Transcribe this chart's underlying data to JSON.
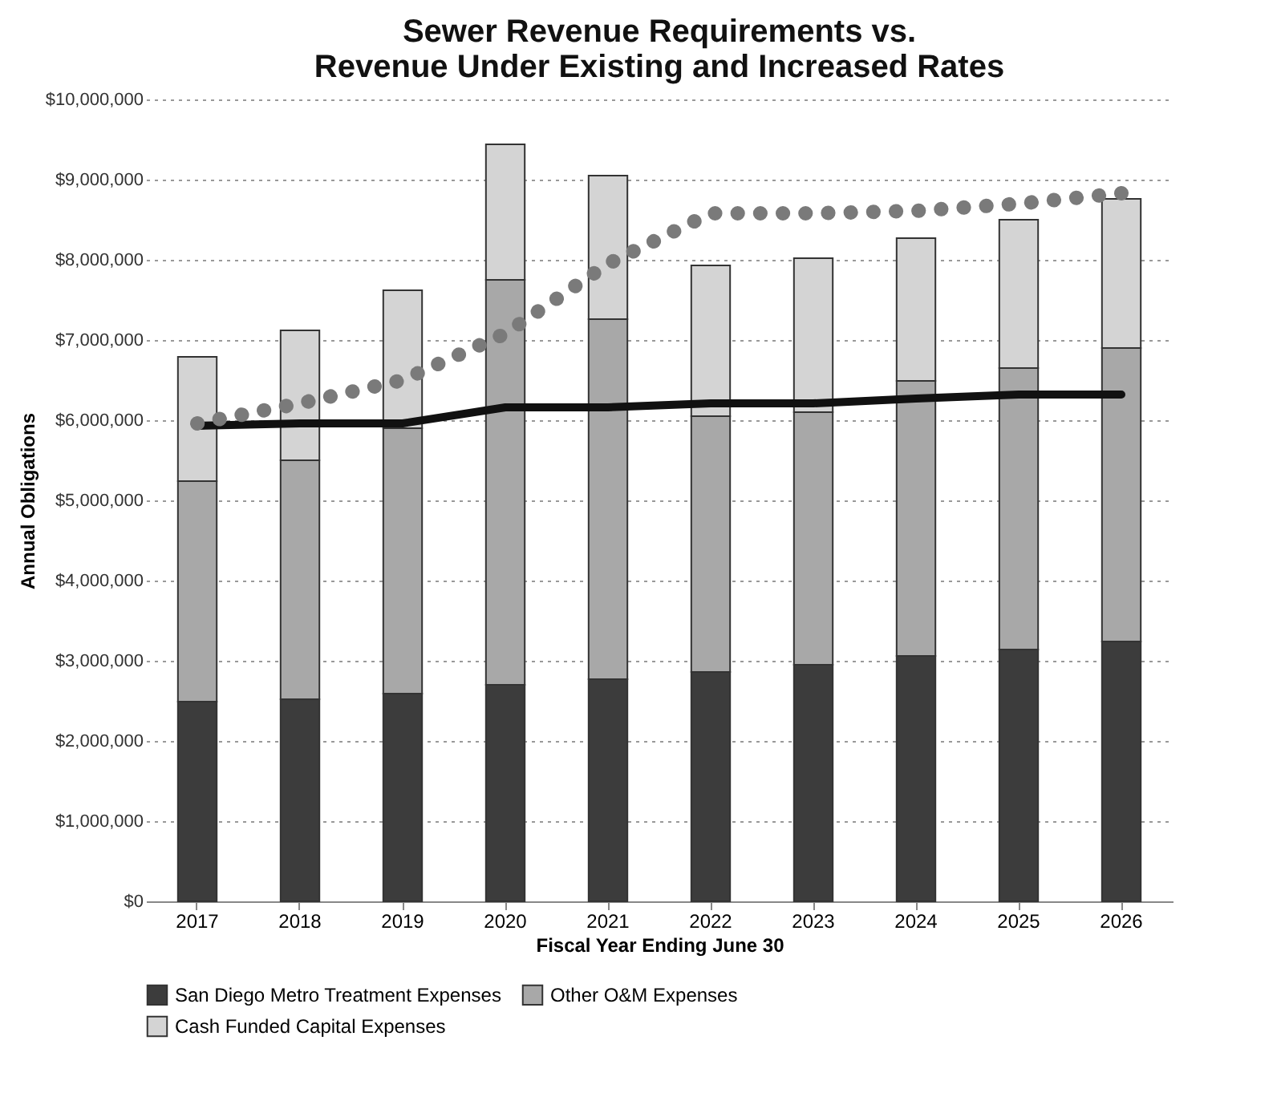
{
  "chart_data": {
    "type": "bar",
    "title": "Sewer Revenue Requirements vs.\nRevenue Under Existing and Increased Rates",
    "xlabel": "Fiscal Year Ending June 30",
    "ylabel": "Annual Obligations",
    "categories": [
      "2017",
      "2018",
      "2019",
      "2020",
      "2021",
      "2022",
      "2023",
      "2024",
      "2025",
      "2026"
    ],
    "stacked": true,
    "series": [
      {
        "name": "San Diego Metro Treatment Expenses",
        "color": "#3c3c3c",
        "values": [
          2490000,
          2520000,
          2590000,
          2700000,
          2770000,
          2860000,
          2950000,
          3060000,
          3140000,
          3240000
        ]
      },
      {
        "name": "Other O&M Expenses",
        "color": "#a8a8a8",
        "values": [
          2750000,
          2980000,
          3310000,
          5050000,
          4490000,
          3190000,
          3150000,
          3430000,
          3510000,
          3660000
        ]
      },
      {
        "name": "Cash Funded Capital Expenses",
        "color": "#d4d4d4",
        "values": [
          1550000,
          1620000,
          1720000,
          1690000,
          1790000,
          1880000,
          1920000,
          1780000,
          1850000,
          1860000
        ]
      },
      {
        "type": "line",
        "color": "#111111",
        "line_style": "solid",
        "values": [
          5930000,
          5960000,
          5960000,
          6160000,
          6160000,
          6210000,
          6210000,
          6270000,
          6320000,
          6320000
        ]
      },
      {
        "type": "line",
        "color": "#7a7a7a",
        "line_style": "dotted",
        "values": [
          5960000,
          6210000,
          6500000,
          7080000,
          7950000,
          8580000,
          8580000,
          8610000,
          8700000,
          8830000
        ]
      }
    ],
    "ylim": [
      0,
      10000000
    ],
    "yticks": [
      {
        "value": 0,
        "label": "$0"
      },
      {
        "value": 1000000,
        "label": "$1,000,000"
      },
      {
        "value": 2000000,
        "label": "$2,000,000"
      },
      {
        "value": 3000000,
        "label": "$3,000,000"
      },
      {
        "value": 4000000,
        "label": "$4,000,000"
      },
      {
        "value": 5000000,
        "label": "$5,000,000"
      },
      {
        "value": 6000000,
        "label": "$6,000,000"
      },
      {
        "value": 7000000,
        "label": "$7,000,000"
      },
      {
        "value": 8000000,
        "label": "$8,000,000"
      },
      {
        "value": 9000000,
        "label": "$9,000,000"
      },
      {
        "value": 10000000,
        "label": "$10,000,000"
      }
    ],
    "grid": "y",
    "legend": "bottom"
  }
}
